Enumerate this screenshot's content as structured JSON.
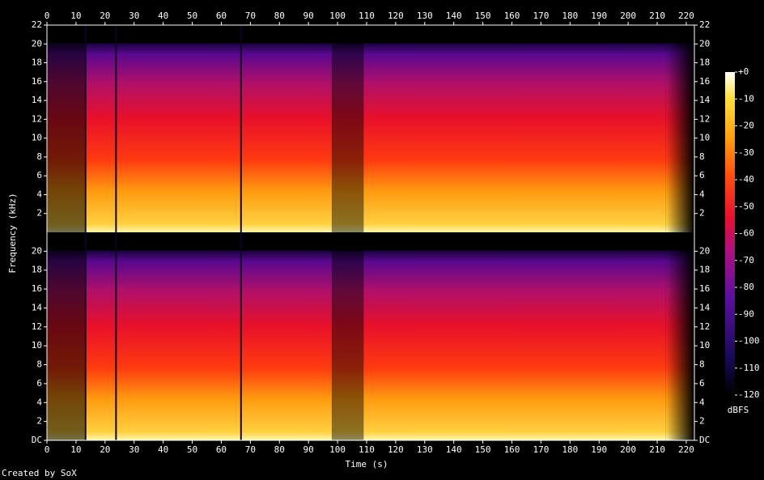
{
  "chart_data": {
    "type": "spectrogram",
    "x_label": "Time (s)",
    "y_label": "Frequency (kHz)",
    "xlim": [
      0,
      222.8
    ],
    "xticks": [
      0,
      10,
      20,
      30,
      40,
      50,
      60,
      70,
      80,
      90,
      100,
      110,
      120,
      130,
      140,
      150,
      160,
      170,
      180,
      190,
      200,
      210,
      220
    ],
    "channels": [
      {
        "ylim": [
          0,
          22
        ],
        "yticks": [
          2,
          4,
          6,
          8,
          10,
          12,
          14,
          16,
          18,
          20,
          22
        ]
      },
      {
        "ylim": [
          0,
          22
        ],
        "yticks": [
          {
            "value": 0,
            "label": "DC"
          },
          2,
          4,
          6,
          8,
          10,
          12,
          14,
          16,
          18,
          20
        ]
      }
    ],
    "colorbar": {
      "label": "dBFS",
      "lim": [
        -120,
        0
      ],
      "ticks": [
        {
          "value": 0,
          "label": "+0"
        },
        -10,
        -20,
        -30,
        -40,
        -50,
        -60,
        -70,
        -80,
        -90,
        -100,
        -110,
        -120
      ]
    },
    "credit": "Created by SoX"
  }
}
